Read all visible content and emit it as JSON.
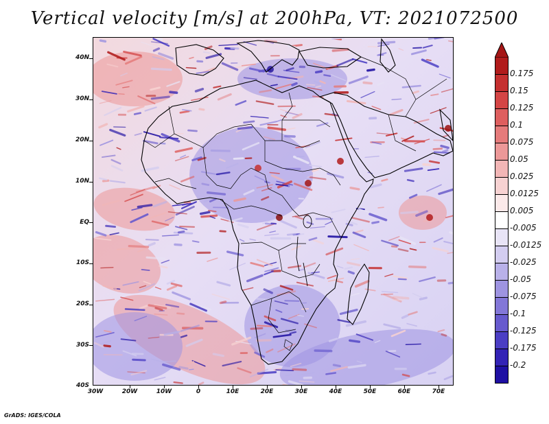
{
  "title": "Vertical velocity [m/s] at 200hPa, VT: 2021072500",
  "credit": "GrADS: IGES/COLA",
  "map": {
    "region": "Africa",
    "variable": "Vertical velocity",
    "units": "m/s",
    "level": "200hPa",
    "valid_time": "2021072500",
    "lon_range": [
      -30,
      75
    ],
    "lat_range": [
      -40,
      45
    ],
    "lat_labels": [
      "40N",
      "30N",
      "20N",
      "10N",
      "EQ",
      "10S",
      "20S",
      "30S",
      "40S"
    ],
    "lon_labels": [
      "30W",
      "20W",
      "10W",
      "0",
      "10E",
      "20E",
      "30E",
      "40E",
      "50E",
      "60E",
      "70E"
    ]
  },
  "colorbar": {
    "labels": [
      "0.175",
      "0.15",
      "0.125",
      "0.1",
      "0.075",
      "0.05",
      "0.025",
      "0.0125",
      "0.005",
      "-0.005",
      "-0.0125",
      "-0.025",
      "-0.05",
      "-0.075",
      "-0.1",
      "-0.125",
      "-0.175",
      "-0.2"
    ],
    "colors": [
      "#b11c1c",
      "#c53030",
      "#d44545",
      "#de5f5f",
      "#e57b7b",
      "#ec9898",
      "#f2b6b6",
      "#f7d2d2",
      "#fbe9e9",
      "#ffffff",
      "#e8e4f6",
      "#d3cdf0",
      "#b9b1e9",
      "#9e94e1",
      "#8377d8",
      "#675ace",
      "#4b3ec4",
      "#3323b6",
      "#1f10a3"
    ],
    "top_arrow_color": "#a51616",
    "bottom_arrow_color": "#1a0a96"
  }
}
